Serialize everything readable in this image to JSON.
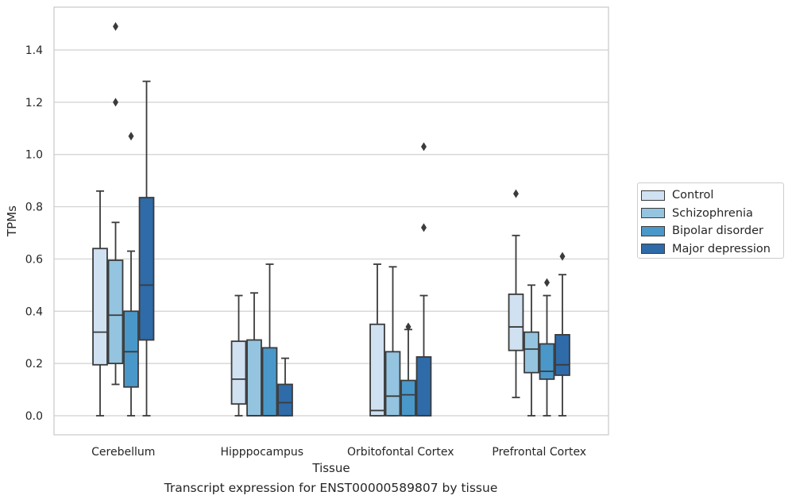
{
  "caption": "Transcript expression for ENST00000589807 by tissue",
  "legend": {
    "items": [
      {
        "label": "Control",
        "color": "#d0e1f2"
      },
      {
        "label": "Schizophrenia",
        "color": "#94c4df"
      },
      {
        "label": "Bipolar disorder",
        "color": "#4a98c9"
      },
      {
        "label": "Major depression",
        "color": "#2e6ba8"
      }
    ]
  },
  "chart_data": {
    "type": "box",
    "title": "",
    "xlabel": "Tissue",
    "ylabel": "TPMs",
    "ylim": [
      -0.07,
      1.56
    ],
    "yticks": [
      0.0,
      0.2,
      0.4,
      0.6,
      0.8,
      1.0,
      1.2,
      1.4
    ],
    "ytick_labels": [
      "0.0",
      "0.2",
      "0.4",
      "0.6",
      "0.8",
      "1.0",
      "1.2",
      "1.4"
    ],
    "grid": "horizontal",
    "legend_position": "right",
    "categories": [
      "Cerebellum",
      "Hipppocampus",
      "Orbitofontal Cortex",
      "Prefrontal Cortex"
    ],
    "series": [
      {
        "name": "Control",
        "color": "#d0e1f2",
        "boxes": [
          {
            "whisker_low": 0.0,
            "q1": 0.195,
            "median": 0.32,
            "q3": 0.64,
            "whisker_high": 0.86,
            "outliers": []
          },
          {
            "whisker_low": 0.0,
            "q1": 0.045,
            "median": 0.14,
            "q3": 0.285,
            "whisker_high": 0.46,
            "outliers": []
          },
          {
            "whisker_low": 0.0,
            "q1": 0.0,
            "median": 0.02,
            "q3": 0.35,
            "whisker_high": 0.58,
            "outliers": []
          },
          {
            "whisker_low": 0.07,
            "q1": 0.25,
            "median": 0.34,
            "q3": 0.465,
            "whisker_high": 0.69,
            "outliers": [
              0.85
            ]
          }
        ]
      },
      {
        "name": "Schizophrenia",
        "color": "#94c4df",
        "boxes": [
          {
            "whisker_low": 0.12,
            "q1": 0.2,
            "median": 0.385,
            "q3": 0.595,
            "whisker_high": 0.74,
            "outliers": [
              1.2,
              1.49
            ]
          },
          {
            "whisker_low": 0.0,
            "q1": 0.0,
            "median": 0.0,
            "q3": 0.29,
            "whisker_high": 0.47,
            "outliers": []
          },
          {
            "whisker_low": 0.0,
            "q1": 0.0,
            "median": 0.075,
            "q3": 0.245,
            "whisker_high": 0.57,
            "outliers": []
          },
          {
            "whisker_low": 0.0,
            "q1": 0.165,
            "median": 0.255,
            "q3": 0.32,
            "whisker_high": 0.5,
            "outliers": []
          }
        ]
      },
      {
        "name": "Bipolar disorder",
        "color": "#4a98c9",
        "boxes": [
          {
            "whisker_low": 0.0,
            "q1": 0.11,
            "median": 0.245,
            "q3": 0.4,
            "whisker_high": 0.63,
            "outliers": [
              1.07
            ]
          },
          {
            "whisker_low": 0.0,
            "q1": 0.0,
            "median": 0.0,
            "q3": 0.26,
            "whisker_high": 0.58,
            "outliers": []
          },
          {
            "whisker_low": 0.0,
            "q1": 0.0,
            "median": 0.08,
            "q3": 0.135,
            "whisker_high": 0.33,
            "outliers": [
              0.34
            ]
          },
          {
            "whisker_low": 0.0,
            "q1": 0.14,
            "median": 0.17,
            "q3": 0.275,
            "whisker_high": 0.46,
            "outliers": [
              0.51
            ]
          }
        ]
      },
      {
        "name": "Major depression",
        "color": "#2e6ba8",
        "boxes": [
          {
            "whisker_low": 0.0,
            "q1": 0.29,
            "median": 0.5,
            "q3": 0.835,
            "whisker_high": 1.28,
            "outliers": []
          },
          {
            "whisker_low": 0.0,
            "q1": 0.0,
            "median": 0.05,
            "q3": 0.12,
            "whisker_high": 0.22,
            "outliers": []
          },
          {
            "whisker_low": 0.0,
            "q1": 0.0,
            "median": 0.0,
            "q3": 0.225,
            "whisker_high": 0.46,
            "outliers": [
              0.72,
              1.03
            ]
          },
          {
            "whisker_low": 0.0,
            "q1": 0.155,
            "median": 0.195,
            "q3": 0.31,
            "whisker_high": 0.54,
            "outliers": [
              0.61
            ]
          }
        ]
      }
    ]
  }
}
